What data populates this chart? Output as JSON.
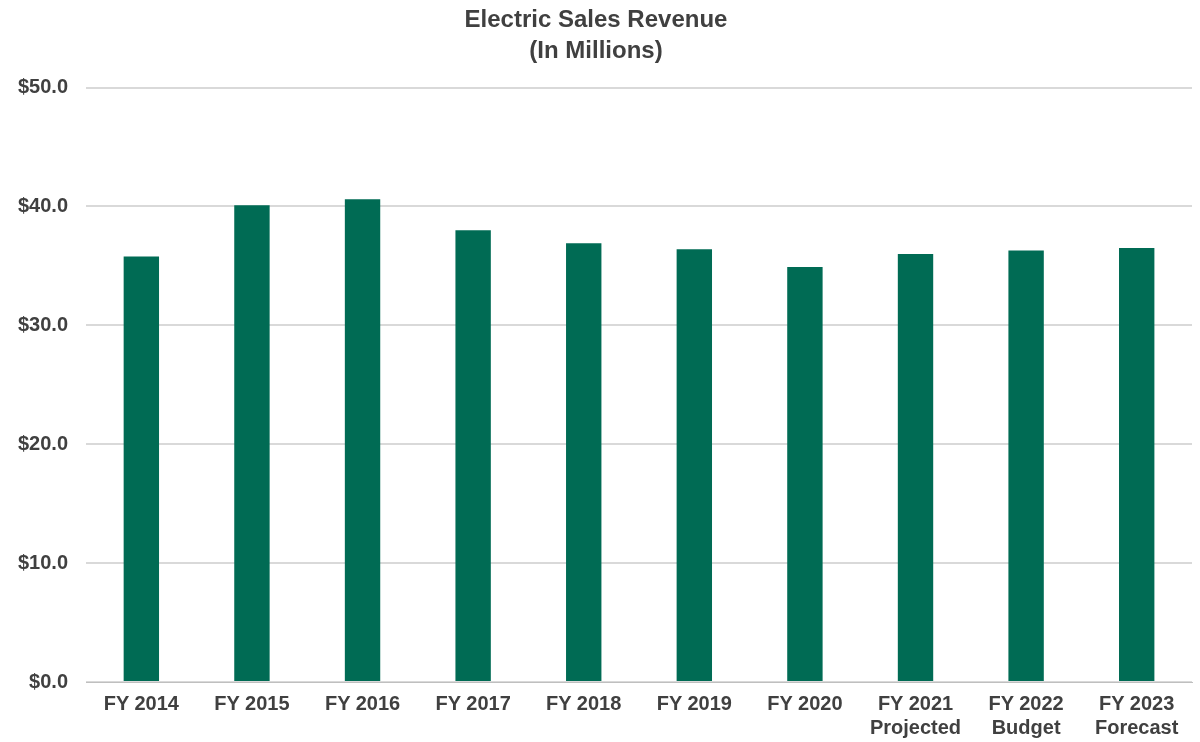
{
  "chart_data": {
    "type": "bar",
    "title": "Electric Sales Revenue",
    "subtitle": "(In Millions)",
    "categories": [
      "FY 2014",
      "FY 2015",
      "FY 2016",
      "FY 2017",
      "FY 2018",
      "FY 2019",
      "FY 2020",
      "FY 2021\nProjected",
      "FY 2022\nBudget",
      "FY 2023\nForecast"
    ],
    "values": [
      35.8,
      40.1,
      40.6,
      38.0,
      36.9,
      36.4,
      34.9,
      36.0,
      36.3,
      36.5
    ],
    "color": "#006b54",
    "ylim": [
      0,
      50
    ],
    "yticks": [
      {
        "value": 0,
        "label": "$0.0"
      },
      {
        "value": 10,
        "label": "$10.0"
      },
      {
        "value": 20,
        "label": "$20.0"
      },
      {
        "value": 30,
        "label": "$30.0"
      },
      {
        "value": 40,
        "label": "$40.0"
      },
      {
        "value": 50,
        "label": "$50.0"
      }
    ],
    "grid": "y",
    "legend": false
  }
}
